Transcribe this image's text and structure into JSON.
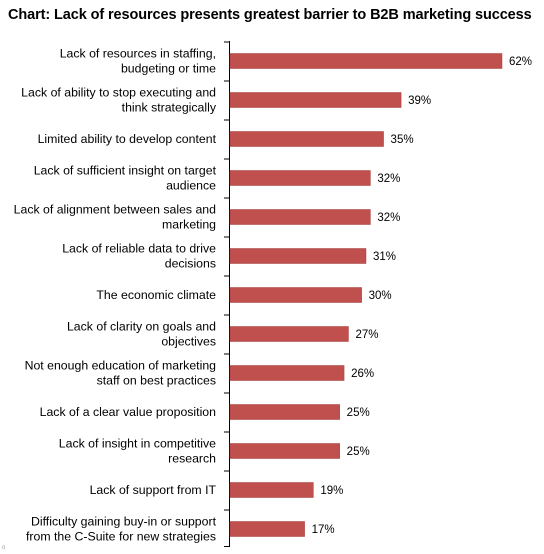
{
  "title": "Chart: Lack of resources presents greatest barrier to B2B marketing success",
  "footnote": "o",
  "colors": {
    "bar": "#c0504d",
    "bar_stroke": "#a33f3c",
    "axis": "#000000"
  },
  "chart_data": {
    "type": "bar",
    "orientation": "horizontal",
    "title": "Chart: Lack of resources presents greatest barrier to B2B marketing success",
    "xlabel": "",
    "ylabel": "",
    "value_suffix": "%",
    "xlim": [
      0,
      63
    ],
    "grid": false,
    "categories": [
      [
        "Lack of resources in staffing,",
        "budgeting or time"
      ],
      [
        "Lack of ability to stop executing and",
        "think strategically"
      ],
      [
        "Limited ability to develop content"
      ],
      [
        "Lack of sufficient insight on target",
        "audience"
      ],
      [
        "Lack of alignment between sales and",
        "marketing"
      ],
      [
        "Lack of reliable data to drive",
        "decisions"
      ],
      [
        "The economic climate"
      ],
      [
        "Lack of clarity on goals and",
        "objectives"
      ],
      [
        "Not enough education of marketing",
        "staff on best practices"
      ],
      [
        "Lack of a clear value proposition"
      ],
      [
        "Lack of insight in competitive",
        "research"
      ],
      [
        "Lack of support from IT"
      ],
      [
        "Difficulty gaining buy-in or support",
        "from the C-Suite for new strategies"
      ]
    ],
    "values": [
      62,
      39,
      35,
      32,
      32,
      31,
      30,
      27,
      26,
      25,
      25,
      19,
      17
    ]
  }
}
